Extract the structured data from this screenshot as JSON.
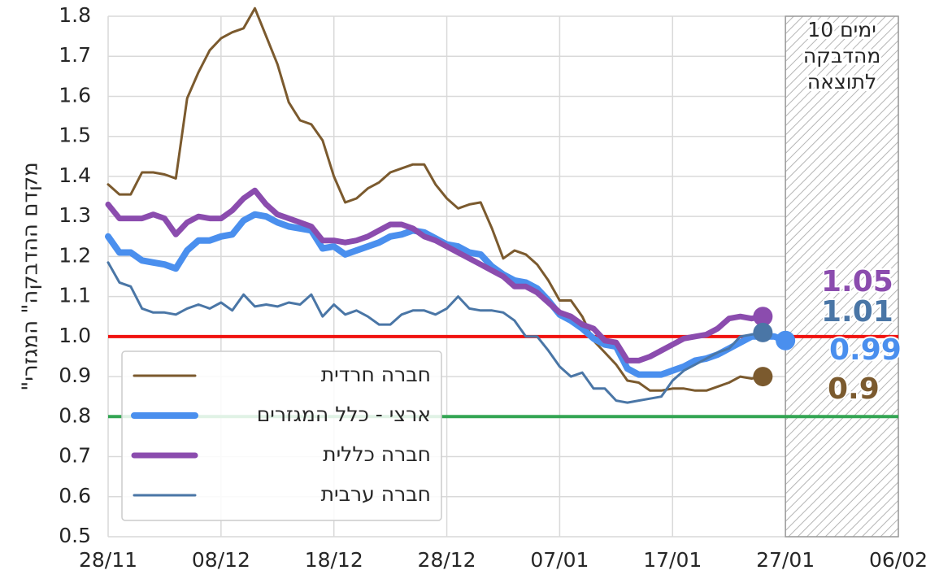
{
  "chart_data": {
    "type": "line",
    "y_label": "\"מקדם ההדבקה\" המגזרי",
    "x": [
      "28/11",
      "29/11",
      "30/11",
      "01/12",
      "02/12",
      "03/12",
      "04/12",
      "05/12",
      "06/12",
      "07/12",
      "08/12",
      "09/12",
      "10/12",
      "11/12",
      "12/12",
      "13/12",
      "14/12",
      "15/12",
      "16/12",
      "17/12",
      "18/12",
      "19/12",
      "20/12",
      "21/12",
      "22/12",
      "23/12",
      "24/12",
      "25/12",
      "26/12",
      "27/12",
      "28/12",
      "29/12",
      "30/12",
      "31/12",
      "01/01",
      "02/01",
      "03/01",
      "04/01",
      "05/01",
      "06/01",
      "07/01",
      "08/01",
      "09/01",
      "10/01",
      "11/01",
      "12/01",
      "13/01",
      "14/01",
      "15/01",
      "16/01",
      "17/01",
      "18/01",
      "19/01",
      "20/01",
      "21/01",
      "22/01",
      "23/01",
      "24/01",
      "25/01",
      "26/01",
      "27/01"
    ],
    "series": [
      {
        "name": "חברה חרדית",
        "color": "#7b5a2e",
        "width": 3,
        "values": [
          1.38,
          1.355,
          1.355,
          1.41,
          1.41,
          1.405,
          1.395,
          1.595,
          1.66,
          1.715,
          1.745,
          1.76,
          1.77,
          1.82,
          1.75,
          1.68,
          1.585,
          1.54,
          1.53,
          1.49,
          1.4,
          1.335,
          1.345,
          1.37,
          1.385,
          1.41,
          1.42,
          1.43,
          1.43,
          1.38,
          1.345,
          1.32,
          1.33,
          1.335,
          1.27,
          1.195,
          1.215,
          1.205,
          1.18,
          1.14,
          1.09,
          1.09,
          1.05,
          0.99,
          0.96,
          0.93,
          0.89,
          0.885,
          0.865,
          0.865,
          0.87,
          0.87,
          0.865,
          0.865,
          0.875,
          0.885,
          0.9,
          0.895,
          0.9,
          null,
          null
        ]
      },
      {
        "name": "ארצי - כלל המגזרים",
        "color": "#4a8fee",
        "width": 8,
        "values": [
          1.25,
          1.21,
          1.21,
          1.19,
          1.185,
          1.18,
          1.17,
          1.215,
          1.24,
          1.24,
          1.25,
          1.255,
          1.29,
          1.305,
          1.3,
          1.285,
          1.275,
          1.27,
          1.265,
          1.22,
          1.225,
          1.205,
          1.215,
          1.225,
          1.235,
          1.25,
          1.255,
          1.265,
          1.26,
          1.245,
          1.23,
          1.225,
          1.21,
          1.205,
          1.175,
          1.155,
          1.14,
          1.135,
          1.12,
          1.09,
          1.055,
          1.04,
          1.02,
          0.995,
          0.98,
          0.975,
          0.92,
          0.905,
          0.905,
          0.905,
          0.915,
          0.925,
          0.94,
          0.945,
          0.955,
          0.97,
          0.985,
          1.0,
          1.0,
          1.0,
          0.99
        ]
      },
      {
        "name": "חברה כללית",
        "color": "#8b4cae",
        "width": 7,
        "values": [
          1.33,
          1.295,
          1.295,
          1.295,
          1.305,
          1.295,
          1.255,
          1.285,
          1.3,
          1.295,
          1.295,
          1.315,
          1.345,
          1.365,
          1.33,
          1.305,
          1.295,
          1.285,
          1.275,
          1.24,
          1.24,
          1.235,
          1.24,
          1.25,
          1.265,
          1.28,
          1.28,
          1.27,
          1.25,
          1.24,
          1.225,
          1.21,
          1.195,
          1.18,
          1.165,
          1.15,
          1.125,
          1.125,
          1.11,
          1.085,
          1.06,
          1.05,
          1.03,
          1.02,
          0.99,
          0.985,
          0.94,
          0.94,
          0.95,
          0.965,
          0.98,
          0.995,
          1.0,
          1.005,
          1.02,
          1.045,
          1.05,
          1.045,
          1.05,
          null,
          null
        ]
      },
      {
        "name": "חברה ערבית",
        "color": "#4a76a6",
        "width": 3,
        "values": [
          1.185,
          1.135,
          1.125,
          1.07,
          1.06,
          1.06,
          1.055,
          1.07,
          1.08,
          1.07,
          1.085,
          1.065,
          1.105,
          1.075,
          1.08,
          1.075,
          1.085,
          1.08,
          1.105,
          1.05,
          1.08,
          1.055,
          1.065,
          1.05,
          1.03,
          1.03,
          1.055,
          1.065,
          1.065,
          1.055,
          1.07,
          1.1,
          1.07,
          1.065,
          1.065,
          1.06,
          1.04,
          1.0,
          1.0,
          0.965,
          0.925,
          0.9,
          0.91,
          0.87,
          0.87,
          0.84,
          0.835,
          0.84,
          0.845,
          0.85,
          0.89,
          0.915,
          0.93,
          0.945,
          0.96,
          0.97,
          1.0,
          1.005,
          1.01,
          null,
          null
        ]
      }
    ],
    "xlim": [
      "28/11",
      "06/02"
    ],
    "xticks": [
      "28/11",
      "08/12",
      "18/12",
      "28/12",
      "07/01",
      "17/01",
      "27/01",
      "06/02"
    ],
    "ylim": [
      0.5,
      1.8
    ],
    "yticks": [
      0.5,
      0.6,
      0.7,
      0.8,
      0.9,
      {
        "value": 1,
        "label": "1.0"
      },
      1.1,
      1.2,
      1.3,
      1.4,
      1.5,
      1.6,
      1.7,
      1.8
    ],
    "grid": true,
    "reference_lines": [
      {
        "value": 1,
        "color": "#f0120f"
      },
      {
        "value": 0.8,
        "color": "#33a553"
      }
    ],
    "shaded_region": {
      "from": "27/01",
      "to": "06/02",
      "lines": [
        "10 ימים",
        "מהדבקה",
        "לתוצאה"
      ]
    },
    "legend": "lower left"
  }
}
